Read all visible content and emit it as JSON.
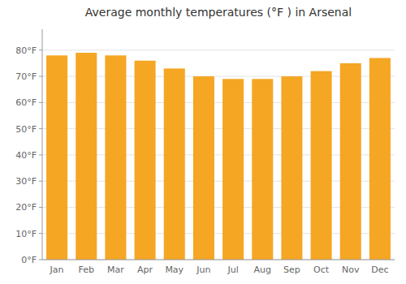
{
  "chart_data": {
    "type": "bar",
    "title": "Average monthly temperatures (°F ) in Arsenal",
    "categories": [
      "Jan",
      "Feb",
      "Mar",
      "Apr",
      "May",
      "Jun",
      "Jul",
      "Aug",
      "Sep",
      "Oct",
      "Nov",
      "Dec"
    ],
    "values": [
      78,
      79,
      78,
      76,
      73,
      70,
      69,
      69,
      70,
      72,
      75,
      77
    ],
    "color": "#F5A623",
    "ylim": [
      0,
      88
    ],
    "yticks": [
      {
        "value": 0,
        "label": "0°F"
      },
      {
        "value": 10,
        "label": "10°F"
      },
      {
        "value": 20,
        "label": "20°F"
      },
      {
        "value": 30,
        "label": "30°F"
      },
      {
        "value": 40,
        "label": "40°F"
      },
      {
        "value": 50,
        "label": "50°F"
      },
      {
        "value": 60,
        "label": "60°F"
      },
      {
        "value": 70,
        "label": "70°F"
      },
      {
        "value": 80,
        "label": "80°F"
      }
    ],
    "grid": true
  }
}
